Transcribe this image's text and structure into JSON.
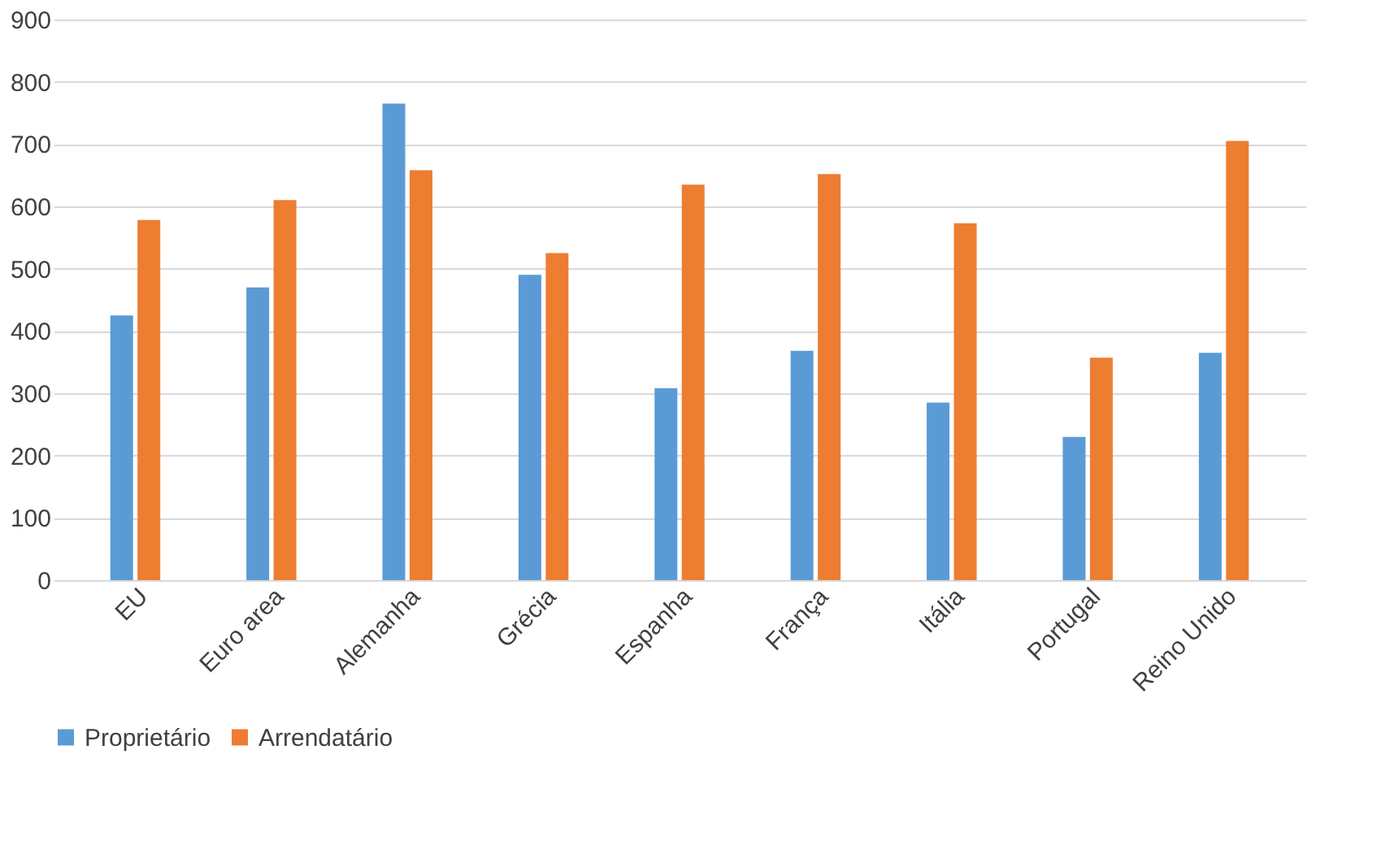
{
  "chart_data": {
    "type": "bar",
    "categories": [
      "EU",
      "Euro area",
      "Alemanha",
      "Grécia",
      "Espanha",
      "França",
      "Itália",
      "Portugal",
      "Reino Unido"
    ],
    "series": [
      {
        "name": "Proprietário",
        "color": "#5b9bd5",
        "values": [
          425,
          470,
          765,
          490,
          308,
          368,
          285,
          230,
          365
        ]
      },
      {
        "name": "Arrendatário",
        "color": "#ed7d31",
        "values": [
          578,
          610,
          658,
          525,
          635,
          652,
          573,
          357,
          705
        ]
      }
    ],
    "ylim": [
      0,
      900
    ],
    "yticks": [
      0,
      100,
      200,
      300,
      400,
      500,
      600,
      700,
      800,
      900
    ],
    "grid": "y",
    "legend": "bottom"
  }
}
